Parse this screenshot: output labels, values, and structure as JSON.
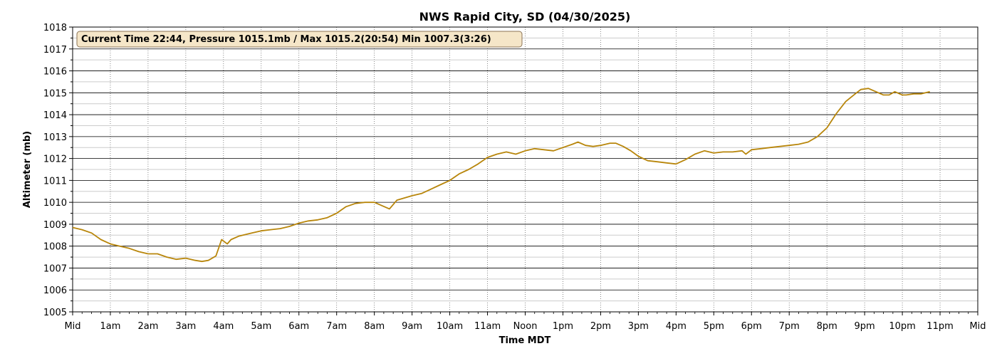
{
  "chart_data": {
    "type": "line",
    "title": "NWS Rapid City, SD (04/30/2025)",
    "xlabel": "Time MDT",
    "ylabel": "Altimeter (mb)",
    "annotation": "Current Time 22:44, Pressure 1015.1mb / Max 1015.2(20:54) Min 1007.3(3:26)",
    "xlim": [
      0,
      24
    ],
    "ylim": [
      1005,
      1018
    ],
    "x_tick_values": [
      0,
      1,
      2,
      3,
      4,
      5,
      6,
      7,
      8,
      9,
      10,
      11,
      12,
      13,
      14,
      15,
      16,
      17,
      18,
      19,
      20,
      21,
      22,
      23,
      24
    ],
    "x_tick_labels": [
      "Mid",
      "1am",
      "2am",
      "3am",
      "4am",
      "5am",
      "6am",
      "7am",
      "8am",
      "9am",
      "10am",
      "11am",
      "Noon",
      "1pm",
      "2pm",
      "3pm",
      "4pm",
      "5pm",
      "6pm",
      "7pm",
      "8pm",
      "9pm",
      "10pm",
      "11pm",
      "Mid"
    ],
    "y_ticks": [
      1005,
      1006,
      1007,
      1008,
      1009,
      1010,
      1011,
      1012,
      1013,
      1014,
      1015,
      1016,
      1017,
      1018
    ],
    "grid": {
      "major_y": true,
      "minor_y": true,
      "vertical_dotted": true
    },
    "line_color": "#b8860b",
    "annotation_bg": "#f5e6c8",
    "annotation_border": "#8b7355",
    "series": [
      {
        "x": [
          0.0,
          0.25,
          0.5,
          0.75,
          1.0,
          1.25,
          1.5,
          1.75,
          2.0,
          2.25,
          2.5,
          2.75,
          3.0,
          3.25,
          3.43,
          3.6,
          3.8,
          3.95,
          4.1,
          4.2,
          4.4,
          4.75,
          5.0,
          5.25,
          5.5,
          5.75,
          6.0,
          6.25,
          6.5,
          6.75,
          7.0,
          7.25,
          7.5,
          7.75,
          8.0,
          8.2,
          8.4,
          8.6,
          8.8,
          9.0,
          9.25,
          9.5,
          9.75,
          10.0,
          10.25,
          10.5,
          10.75,
          11.0,
          11.25,
          11.5,
          11.75,
          12.0,
          12.25,
          12.5,
          12.75,
          13.0,
          13.25,
          13.4,
          13.6,
          13.8,
          14.0,
          14.25,
          14.4,
          14.6,
          14.8,
          15.0,
          15.25,
          15.5,
          15.75,
          16.0,
          16.25,
          16.5,
          16.75,
          17.0,
          17.25,
          17.5,
          17.75,
          17.85,
          18.0,
          18.25,
          18.5,
          18.75,
          19.0,
          19.25,
          19.5,
          19.75,
          20.0,
          20.25,
          20.5,
          20.75,
          20.9,
          21.1,
          21.3,
          21.5,
          21.65,
          21.8,
          22.0,
          22.1,
          22.3,
          22.5,
          22.73
        ],
        "values": [
          1008.85,
          1008.75,
          1008.6,
          1008.3,
          1008.1,
          1008.0,
          1007.9,
          1007.75,
          1007.65,
          1007.65,
          1007.5,
          1007.4,
          1007.45,
          1007.35,
          1007.3,
          1007.35,
          1007.55,
          1008.3,
          1008.1,
          1008.3,
          1008.45,
          1008.6,
          1008.7,
          1008.75,
          1008.8,
          1008.9,
          1009.05,
          1009.15,
          1009.2,
          1009.3,
          1009.5,
          1009.8,
          1009.95,
          1010.0,
          1010.0,
          1009.85,
          1009.7,
          1010.1,
          1010.2,
          1010.3,
          1010.4,
          1010.6,
          1010.8,
          1011.0,
          1011.3,
          1011.5,
          1011.75,
          1012.05,
          1012.2,
          1012.3,
          1012.2,
          1012.35,
          1012.45,
          1012.4,
          1012.35,
          1012.5,
          1012.65,
          1012.75,
          1012.6,
          1012.55,
          1012.6,
          1012.7,
          1012.7,
          1012.55,
          1012.35,
          1012.1,
          1011.9,
          1011.85,
          1011.8,
          1011.75,
          1011.95,
          1012.2,
          1012.35,
          1012.25,
          1012.3,
          1012.3,
          1012.35,
          1012.2,
          1012.4,
          1012.45,
          1012.5,
          1012.55,
          1012.6,
          1012.65,
          1012.75,
          1013.0,
          1013.4,
          1014.05,
          1014.6,
          1014.95,
          1015.15,
          1015.2,
          1015.05,
          1014.9,
          1014.9,
          1015.05,
          1014.9,
          1014.9,
          1014.95,
          1014.95,
          1015.05
        ]
      }
    ]
  }
}
